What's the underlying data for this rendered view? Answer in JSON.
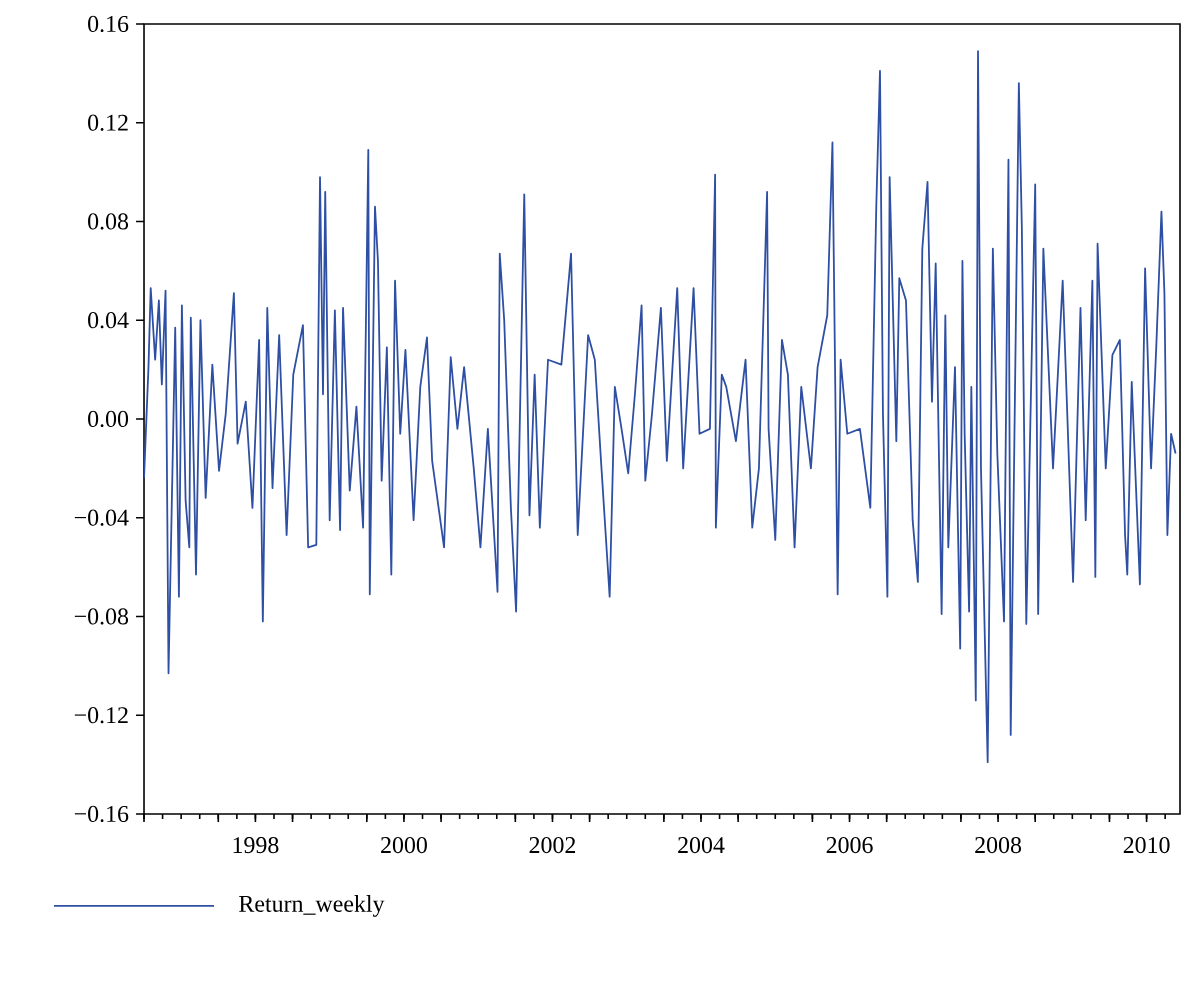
{
  "chart_data": {
    "type": "line",
    "legend": "bottom left",
    "grid": false,
    "xlim": [
      1997,
      2010.95
    ],
    "ylim": [
      -0.16,
      0.16
    ],
    "xticks": [
      {
        "value": 1997,
        "label": null
      },
      {
        "value": 1998,
        "label": null
      },
      {
        "value": 1998.5,
        "label": "1998"
      },
      {
        "value": 1999,
        "label": null
      },
      {
        "value": 2000,
        "label": null
      },
      {
        "value": 2000.5,
        "label": "2000"
      },
      {
        "value": 2001,
        "label": null
      },
      {
        "value": 2002,
        "label": null
      },
      {
        "value": 2002.5,
        "label": "2002"
      },
      {
        "value": 2003,
        "label": null
      },
      {
        "value": 2004,
        "label": null
      },
      {
        "value": 2004.5,
        "label": "2004"
      },
      {
        "value": 2005,
        "label": null
      },
      {
        "value": 2006,
        "label": null
      },
      {
        "value": 2006.5,
        "label": "2006"
      },
      {
        "value": 2007,
        "label": null
      },
      {
        "value": 2008,
        "label": null
      },
      {
        "value": 2008.5,
        "label": "2008"
      },
      {
        "value": 2009,
        "label": null
      },
      {
        "value": 2010,
        "label": null
      },
      {
        "value": 2010.5,
        "label": "2010"
      }
    ],
    "yticks": [
      {
        "value": -0.16,
        "label": "−0.16"
      },
      {
        "value": -0.12,
        "label": "−0.12"
      },
      {
        "value": -0.08,
        "label": "−0.08"
      },
      {
        "value": -0.04,
        "label": "−0.04"
      },
      {
        "value": 0,
        "label": "0.00"
      },
      {
        "value": 0.04,
        "label": "0.04"
      },
      {
        "value": 0.08,
        "label": "0.08"
      },
      {
        "value": 0.12,
        "label": "0.12"
      },
      {
        "value": 0.16,
        "label": "0.16"
      }
    ],
    "series": [
      {
        "name": "Return_weekly",
        "color": "#2e4fa3",
        "x": [
          1997.0,
          1997.06,
          1997.09,
          1997.15,
          1997.2,
          1997.24,
          1997.29,
          1997.33,
          1997.38,
          1997.42,
          1997.47,
          1997.51,
          1997.56,
          1997.61,
          1997.63,
          1997.7,
          1997.76,
          1997.83,
          1997.92,
          1998.01,
          1998.1,
          1998.21,
          1998.26,
          1998.37,
          1998.46,
          1998.55,
          1998.6,
          1998.66,
          1998.73,
          1998.82,
          1998.92,
          1999.01,
          1999.14,
          1999.21,
          1999.32,
          1999.37,
          1999.41,
          1999.44,
          1999.5,
          1999.57,
          1999.64,
          1999.68,
          1999.77,
          1999.86,
          1999.95,
          2000.02,
          2000.04,
          2000.11,
          2000.15,
          2000.2,
          2000.27,
          2000.33,
          2000.38,
          2000.45,
          2000.52,
          2000.63,
          2000.72,
          2000.81,
          2000.88,
          2001.04,
          2001.13,
          2001.22,
          2001.31,
          2001.44,
          2001.53,
          2001.63,
          2001.76,
          2001.79,
          2001.85,
          2001.94,
          2002.01,
          2002.08,
          2002.12,
          2002.19,
          2002.26,
          2002.33,
          2002.44,
          2002.62,
          2002.75,
          2002.84,
          2002.98,
          2003.07,
          2003.16,
          2003.27,
          2003.34,
          2003.43,
          2003.52,
          2003.61,
          2003.7,
          2003.75,
          2003.84,
          2003.96,
          2004.04,
          2004.18,
          2004.26,
          2004.4,
          2004.48,
          2004.62,
          2004.69,
          2004.7,
          2004.78,
          2004.84,
          2004.97,
          2005.1,
          2005.19,
          2005.28,
          2005.39,
          2005.41,
          2005.5,
          2005.59,
          2005.67,
          2005.76,
          2005.85,
          2005.98,
          2006.07,
          2006.2,
          2006.27,
          2006.34,
          2006.38,
          2006.47,
          2006.64,
          2006.78,
          2006.86,
          2006.91,
          2006.95,
          2007.01,
          2007.04,
          2007.13,
          2007.17,
          2007.26,
          2007.35,
          2007.42,
          2007.48,
          2007.55,
          2007.61,
          2007.66,
          2007.74,
          2007.79,
          2007.83,
          2007.92,
          2007.99,
          2008.02,
          2008.05,
          2008.11,
          2008.14,
          2008.2,
          2008.23,
          2008.27,
          2008.36,
          2008.43,
          2008.49,
          2008.58,
          2008.64,
          2008.67,
          2008.78,
          2008.82,
          2008.88,
          2009.0,
          2009.04,
          2009.11,
          2009.24,
          2009.37,
          2009.51,
          2009.61,
          2009.68,
          2009.77,
          2009.81,
          2009.84,
          2009.95,
          2010.04,
          2010.14,
          2010.21,
          2010.24,
          2010.3,
          2010.41,
          2010.48,
          2010.56,
          2010.63,
          2010.7,
          2010.74,
          2010.78,
          2010.83,
          2010.89
        ],
        "values": [
          -0.024,
          0.021,
          0.053,
          0.024,
          0.048,
          0.014,
          0.052,
          -0.103,
          -0.025,
          0.037,
          -0.072,
          0.046,
          -0.033,
          -0.052,
          0.041,
          -0.063,
          0.04,
          -0.032,
          0.022,
          -0.021,
          0.002,
          0.051,
          -0.01,
          0.007,
          -0.036,
          0.032,
          -0.082,
          0.045,
          -0.028,
          0.034,
          -0.047,
          0.018,
          0.038,
          -0.052,
          -0.051,
          0.098,
          0.01,
          0.092,
          -0.041,
          0.044,
          -0.045,
          0.045,
          -0.029,
          0.005,
          -0.044,
          0.109,
          -0.071,
          0.086,
          0.064,
          -0.025,
          0.029,
          -0.063,
          0.056,
          -0.006,
          0.028,
          -0.041,
          0.013,
          0.033,
          -0.017,
          -0.052,
          0.025,
          -0.004,
          0.021,
          -0.02,
          -0.052,
          -0.004,
          -0.07,
          0.067,
          0.04,
          -0.036,
          -0.078,
          0.029,
          0.091,
          -0.039,
          0.018,
          -0.044,
          0.024,
          0.022,
          0.067,
          -0.047,
          0.034,
          0.024,
          -0.02,
          -0.072,
          0.013,
          -0.004,
          -0.022,
          0.01,
          0.046,
          -0.025,
          0.002,
          0.045,
          -0.017,
          0.053,
          -0.02,
          0.053,
          -0.006,
          -0.004,
          0.099,
          -0.044,
          0.018,
          0.013,
          -0.009,
          0.024,
          -0.044,
          -0.02,
          0.092,
          -0.004,
          -0.049,
          0.032,
          0.018,
          -0.052,
          0.013,
          -0.02,
          0.021,
          0.042,
          0.112,
          -0.071,
          0.024,
          -0.006,
          -0.004,
          -0.036,
          0.086,
          0.141,
          0.002,
          -0.072,
          0.098,
          -0.009,
          0.057,
          0.048,
          -0.041,
          -0.066,
          0.069,
          0.096,
          0.007,
          0.063,
          -0.079,
          0.042,
          -0.052,
          0.021,
          -0.093,
          0.064,
          -0.006,
          -0.078,
          0.013,
          -0.114,
          0.149,
          -0.02,
          -0.139,
          0.069,
          -0.014,
          -0.082,
          0.105,
          -0.128,
          0.136,
          0.078,
          -0.083,
          0.095,
          -0.079,
          0.069,
          -0.02,
          0.056,
          -0.066,
          0.045,
          -0.041,
          0.056,
          -0.064,
          0.071,
          -0.02,
          0.026,
          0.032,
          -0.047,
          -0.063,
          0.015,
          -0.067,
          0.061,
          -0.02,
          0.029,
          0.084,
          0.051,
          -0.047,
          -0.006,
          -0.014
        ]
      }
    ]
  }
}
